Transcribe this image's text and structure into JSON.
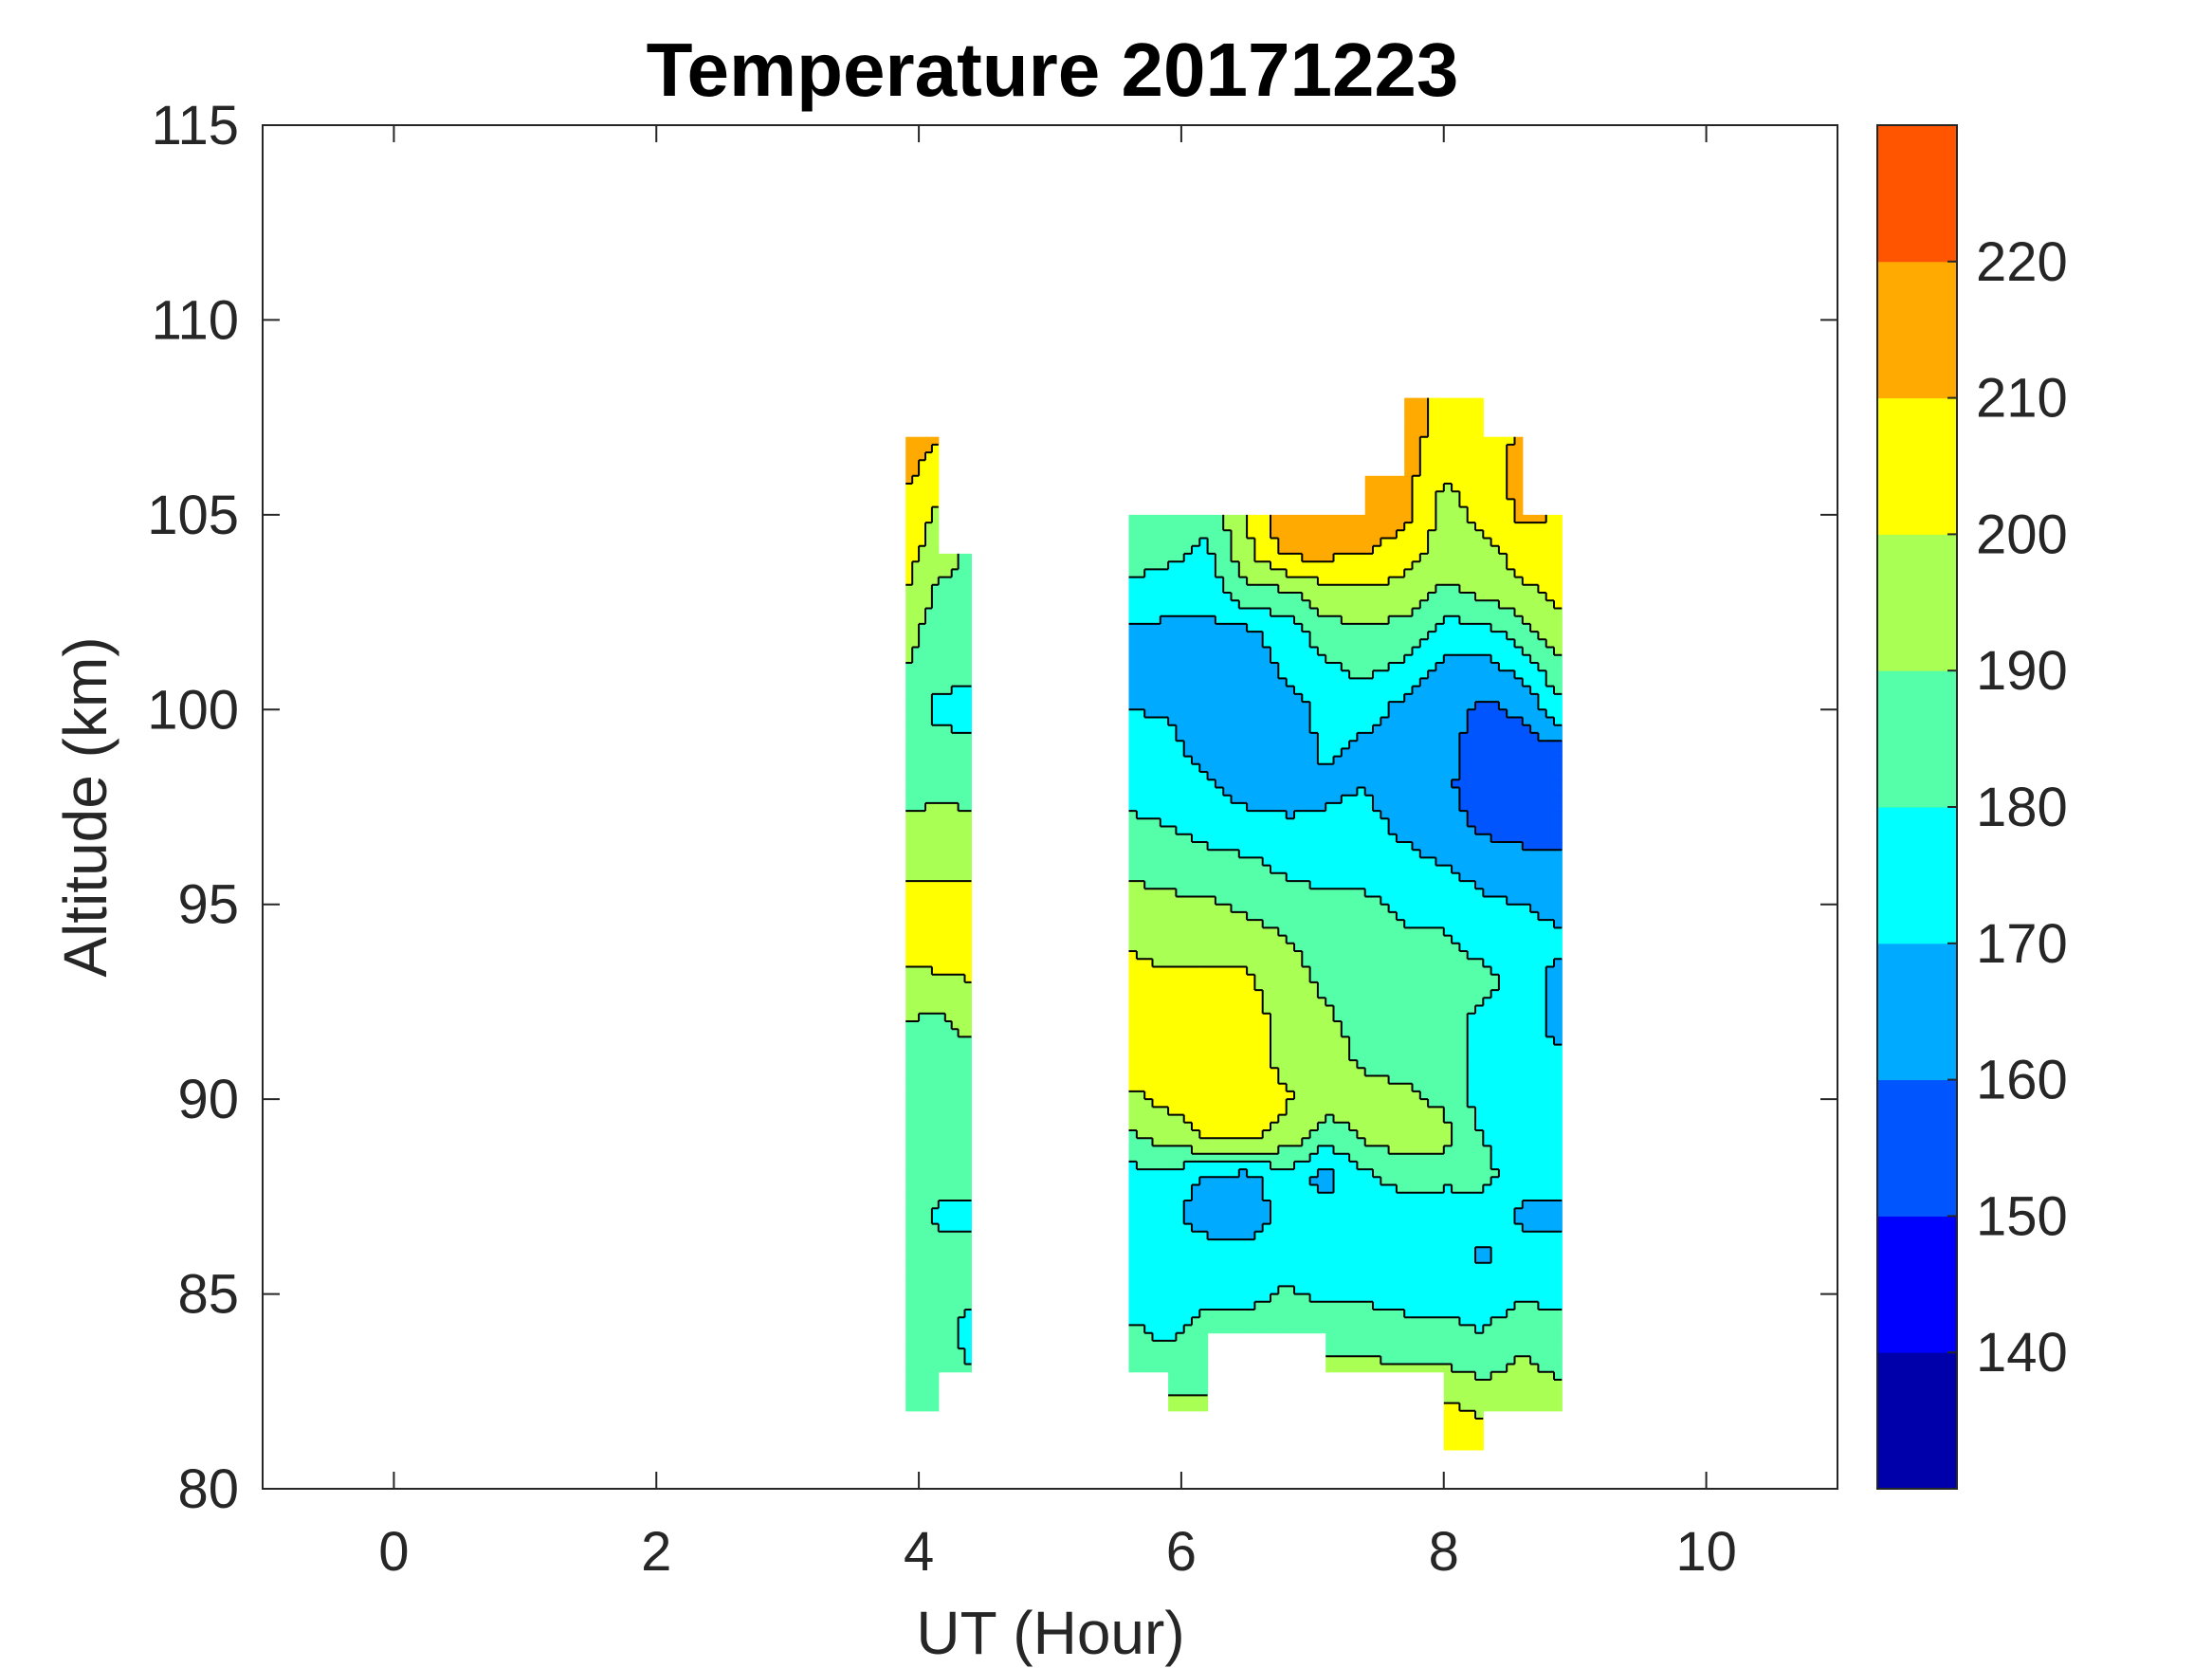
{
  "chart_data": {
    "type": "heatmap",
    "subtype": "filled-contour",
    "title": "Temperature 20171223",
    "xlabel": "UT (Hour)",
    "ylabel": "Altitude (km)",
    "xlim": [
      -1,
      11
    ],
    "ylim": [
      80,
      115
    ],
    "xticks": [
      0,
      2,
      4,
      6,
      8,
      10
    ],
    "yticks": [
      80,
      85,
      90,
      95,
      100,
      105,
      110,
      115
    ],
    "grid": false,
    "colorbar": {
      "placement": "right",
      "range": [
        130,
        230
      ],
      "levels": [
        130,
        140,
        150,
        160,
        170,
        180,
        190,
        200,
        210,
        220,
        230
      ],
      "colors": [
        "#0000AA",
        "#0000FF",
        "#0055FF",
        "#00AAFF",
        "#00FFFF",
        "#55FFAA",
        "#AAFF55",
        "#FFFF00",
        "#FFAA00",
        "#FF5500"
      ],
      "ticks": [
        140,
        150,
        160,
        170,
        180,
        190,
        200,
        210,
        220
      ]
    },
    "altitudes": [
      108,
      107,
      106,
      105,
      104,
      103,
      102,
      101,
      100,
      99,
      98,
      97,
      96,
      95,
      94,
      93,
      92,
      91,
      90,
      89,
      88,
      87,
      86,
      85,
      84,
      83,
      82,
      81
    ],
    "blocks": [
      {
        "columns": [
          {
            "hour": 3.9,
            "temps": [
              null,
              218,
              212,
              206,
              204,
              200,
              193,
              190,
              188,
              186,
              186,
              192,
              196,
              204,
              204,
              197,
              190,
              186,
              186,
              186,
              186,
              186,
              186,
              191,
              186,
              185,
              184,
              null
            ]
          },
          {
            "hour": 4.15,
            "temps": [
              null,
              210,
              204,
              198,
              195,
              188,
              186,
              185,
              176,
              185,
              186,
              195,
              198,
              204,
              205,
              198,
              188,
              186,
              186,
              185,
              185,
              178,
              185,
              185,
              185,
              185,
              184,
              null
            ]
          },
          {
            "hour": 4.4,
            "temps": [
              null,
              null,
              null,
              null,
              188,
              186,
              184,
              184,
              174,
              184,
              186,
              193,
              197,
              204,
              203,
              200,
              194,
              186,
              184,
              184,
              184,
              176,
              185,
              182,
              176,
              180,
              null,
              null
            ]
          }
        ]
      },
      {
        "columns": [
          {
            "hour": 5.6,
            "temps": [
              null,
              null,
              null,
              184,
              183,
              178,
              168,
              165,
              170,
              173,
              176,
              182,
              188,
              193,
              199,
              204,
              205,
              204,
              198,
              188,
              176,
              174,
              174,
              176,
              182,
              188,
              null,
              null
            ]
          },
          {
            "hour": 5.9,
            "temps": [
              null,
              null,
              null,
              184,
              182,
              176,
              167,
              164,
              169,
              173,
              175,
              180,
              186,
              192,
              196,
              202,
              206,
              205,
              203,
              194,
              176,
              172,
              173,
              175,
              178,
              186,
              192,
              null
            ]
          },
          {
            "hour": 6.2,
            "temps": [
              null,
              null,
              null,
              183,
              178,
              174,
              167,
              164,
              163,
              166,
              172,
              176,
              184,
              191,
              197,
              203,
              205,
              206,
              205,
              201,
              168,
              166,
              174,
              178,
              183,
              188,
              192,
              null
            ]
          },
          {
            "hour": 6.5,
            "temps": [
              null,
              null,
              null,
              199,
              198,
              187,
              168,
              164,
              163,
              163,
              166,
              174,
              182,
              188,
              196,
              202,
              206,
              206,
              206,
              203,
              166,
              165,
              172,
              178,
              183,
              null,
              null,
              null
            ]
          },
          {
            "hour": 6.8,
            "temps": [
              null,
              null,
              null,
              220,
              212,
              188,
              175,
              172,
              165,
              164,
              165,
              172,
              178,
              184,
              191,
              194,
              195,
              197,
              201,
              196,
              175,
              174,
              174,
              181,
              185,
              null,
              null,
              null
            ]
          },
          {
            "hour": 7.1,
            "temps": [
              null,
              null,
              null,
              220,
              212,
              196,
              186,
              178,
              173,
              172,
              168,
              172,
              176,
              182,
              186,
              188,
              192,
              194,
              196,
              183,
              166,
              174,
              175,
              178,
              186,
              193,
              203,
              null
            ]
          },
          {
            "hour": 7.4,
            "temps": [
              null,
              null,
              220,
              218,
              210,
              198,
              188,
              182,
              176,
              167,
              170,
              173,
              176,
              182,
              184,
              185,
              186,
              188,
              194,
              192,
              178,
              175,
              175,
              178,
              186,
              192,
              null,
              null
            ]
          },
          {
            "hour": 7.7,
            "temps": [
              215,
              215,
              214,
              213,
              205,
              196,
              186,
              177,
              166,
              164,
              164,
              168,
              173,
              178,
              182,
              183,
              184,
              185,
              193,
              194,
              184,
              174,
              174,
              176,
              184,
              192,
              null,
              null
            ]
          },
          {
            "hour": 8.0,
            "temps": [
              205,
              205,
              200,
              196,
              195,
              188,
              176,
              166,
              165,
              163,
              162,
              164,
              170,
              176,
              182,
              184,
              184,
              185,
              188,
              194,
              182,
              175,
              174,
              176,
              183,
              192,
              203,
              206
            ]
          },
          {
            "hour": 8.3,
            "temps": [
              203,
              204,
              205,
              203,
              197,
              192,
              176,
              166,
              157,
              155,
              155,
              158,
              166,
              172,
              177,
              183,
              177,
              175,
              174,
              180,
              183,
              174,
              168,
              175,
              180,
              188,
              198,
              204
            ]
          },
          {
            "hour": 8.6,
            "temps": [
              null,
              212,
              214,
              212,
              204,
              198,
              186,
              172,
              162,
              156,
              156,
              157,
              163,
              170,
              174,
              175,
              175,
              175,
              174,
              175,
              175,
              168,
              174,
              178,
              186,
              193,
              195,
              null
            ]
          },
          {
            "hour": 8.9,
            "temps": [
              null,
              null,
              null,
              210,
              204,
              203,
              198,
              188,
              178,
              158,
              153,
              155,
              163,
              167,
              172,
              166,
              165,
              172,
              175,
              178,
              174,
              166,
              174,
              178,
              183,
              188,
              195,
              null
            ]
          }
        ]
      }
    ]
  }
}
